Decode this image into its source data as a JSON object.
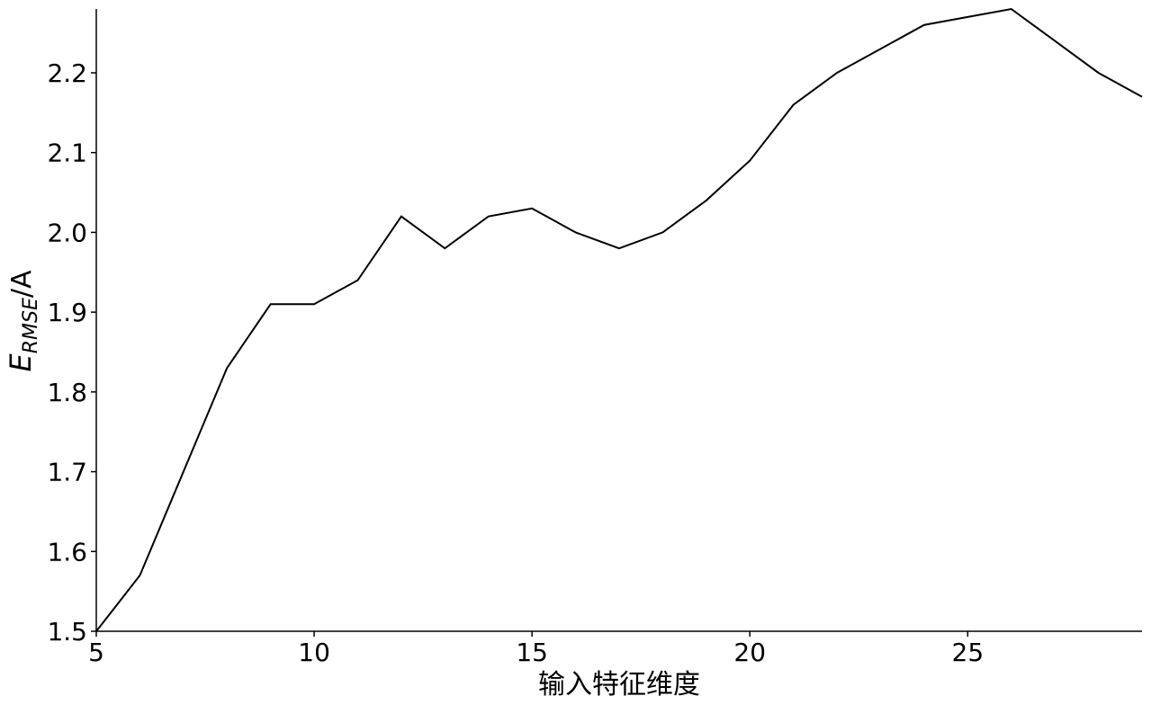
{
  "chart_data": {
    "type": "line",
    "title": "",
    "xlabel": "输入特征维度",
    "ylabel": {
      "symbol": "E",
      "subscript": "RMSE",
      "unit": "/A"
    },
    "xlim": [
      5,
      29
    ],
    "ylim": [
      1.5,
      2.28
    ],
    "xticks": [
      "5",
      "10",
      "15",
      "20",
      "25"
    ],
    "yticks": [
      "1.5",
      "1.6",
      "1.7",
      "1.8",
      "1.9",
      "2.0",
      "2.1",
      "2.2"
    ],
    "grid": false,
    "line_color": "#000000",
    "series": [
      {
        "x": [
          5,
          6,
          7,
          8,
          9,
          10,
          11,
          12,
          13,
          14,
          15,
          16,
          17,
          18,
          19,
          20,
          21,
          22,
          23,
          24,
          25,
          26,
          27,
          28,
          29
        ],
        "y": [
          1.5,
          1.57,
          1.7,
          1.83,
          1.91,
          1.91,
          1.94,
          2.02,
          1.98,
          2.02,
          2.03,
          2.0,
          1.98,
          2.0,
          2.04,
          2.09,
          2.16,
          2.2,
          2.23,
          2.26,
          2.27,
          2.28,
          2.24,
          2.2,
          2.17
        ]
      }
    ]
  }
}
